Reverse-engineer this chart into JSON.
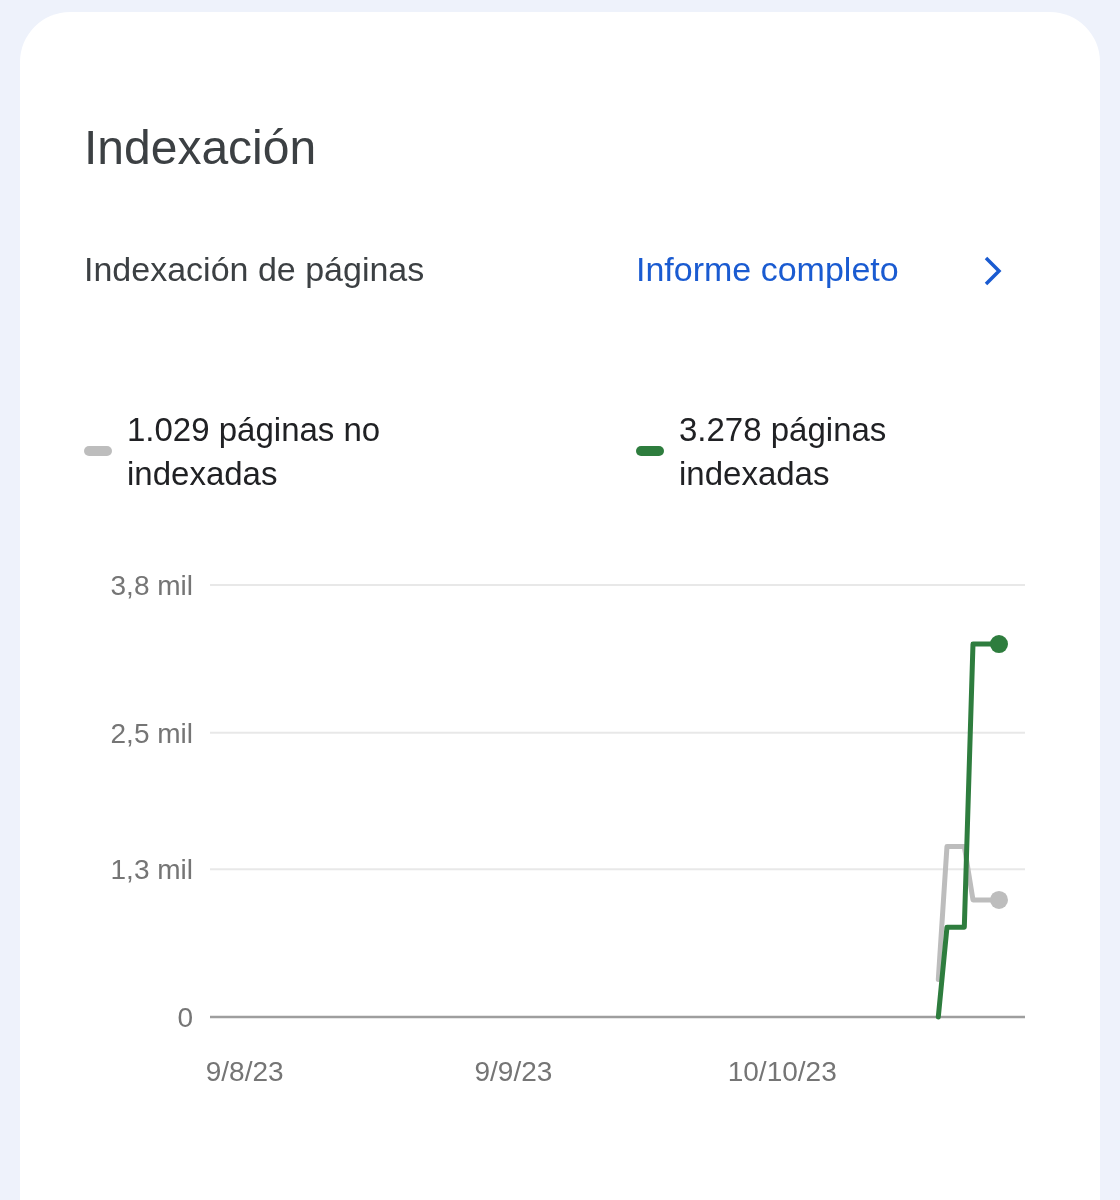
{
  "chart_data": {
    "type": "line",
    "title": "Indexación",
    "subtitle": "Indexación de páginas",
    "annotations": [
      "Informe completo"
    ],
    "legend": "top",
    "grid": "y",
    "xlim": [
      "2023-08-05",
      "2023-11-07"
    ],
    "xticks": [
      {
        "value": "2023-08-09",
        "label": "9/8/23"
      },
      {
        "value": "2023-09-09",
        "label": "9/9/23"
      },
      {
        "value": "2023-10-10",
        "label": "10/10/23"
      }
    ],
    "ylim": [
      0,
      3.8
    ],
    "yticks": [
      0,
      {
        "value": 1.3,
        "label": "1,3 mil"
      },
      {
        "value": 2.5,
        "label": "2,5 mil"
      },
      {
        "value": 3.8,
        "label": "3,8 mil"
      }
    ],
    "series": [
      {
        "name": "1.029 páginas no indexadas",
        "color": "#bdbdbd",
        "x": [
          "2023-10-28",
          "2023-10-29",
          "2023-10-31",
          "2023-11-01",
          "2023-11-04"
        ],
        "values": [
          0.33,
          1.5,
          1.5,
          1.03,
          1.03
        ]
      },
      {
        "name": "3.278 páginas indexadas",
        "color": "#2e7d3e",
        "x": [
          "2023-10-28",
          "2023-10-29",
          "2023-10-31",
          "2023-11-01",
          "2023-11-04"
        ],
        "values": [
          0,
          0.79,
          0.79,
          3.28,
          3.28
        ]
      }
    ]
  }
}
